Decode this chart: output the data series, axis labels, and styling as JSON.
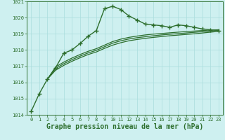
{
  "title": "Graphe pression niveau de la mer (hPa)",
  "background_color": "#cef0f0",
  "grid_color": "#aadddd",
  "line_color": "#2d6e2d",
  "xlim": [
    -0.5,
    23.5
  ],
  "ylim": [
    1014,
    1021
  ],
  "yticks": [
    1014,
    1015,
    1016,
    1017,
    1018,
    1019,
    1020,
    1021
  ],
  "xticks": [
    0,
    1,
    2,
    3,
    4,
    5,
    6,
    7,
    8,
    9,
    10,
    11,
    12,
    13,
    14,
    15,
    16,
    17,
    18,
    19,
    20,
    21,
    22,
    23
  ],
  "series": [
    {
      "x": [
        0,
        1,
        2,
        3,
        4,
        5,
        6,
        7,
        8,
        9,
        10,
        11,
        12,
        13,
        14,
        15,
        16,
        17,
        18,
        19,
        20,
        21,
        22,
        23
      ],
      "y": [
        1014.2,
        1015.3,
        1016.2,
        1016.9,
        1017.8,
        1018.0,
        1018.4,
        1018.85,
        1019.2,
        1020.55,
        1020.7,
        1020.5,
        1020.1,
        1019.85,
        1019.6,
        1019.55,
        1019.5,
        1019.4,
        1019.55,
        1019.5,
        1019.4,
        1019.3,
        1019.25,
        1019.2
      ],
      "marker": "+",
      "markersize": 4,
      "linestyle": "-",
      "linewidth": 1.0
    },
    {
      "x": [
        2,
        3,
        4,
        5,
        6,
        7,
        8,
        9,
        10,
        11,
        12,
        13,
        14,
        15,
        16,
        17,
        18,
        19,
        20,
        21,
        22,
        23
      ],
      "y": [
        1016.2,
        1016.75,
        1017.05,
        1017.3,
        1017.52,
        1017.72,
        1017.88,
        1018.1,
        1018.3,
        1018.45,
        1018.57,
        1018.65,
        1018.72,
        1018.78,
        1018.83,
        1018.88,
        1018.92,
        1018.96,
        1019.0,
        1019.05,
        1019.1,
        1019.15
      ],
      "marker": null,
      "markersize": 0,
      "linestyle": "-",
      "linewidth": 0.9
    },
    {
      "x": [
        2,
        3,
        4,
        5,
        6,
        7,
        8,
        9,
        10,
        11,
        12,
        13,
        14,
        15,
        16,
        17,
        18,
        19,
        20,
        21,
        22,
        23
      ],
      "y": [
        1016.2,
        1016.85,
        1017.15,
        1017.4,
        1017.62,
        1017.82,
        1017.98,
        1018.2,
        1018.42,
        1018.57,
        1018.68,
        1018.76,
        1018.82,
        1018.88,
        1018.93,
        1018.97,
        1019.01,
        1019.05,
        1019.09,
        1019.13,
        1019.17,
        1019.2
      ],
      "marker": null,
      "markersize": 0,
      "linestyle": "-",
      "linewidth": 0.9
    },
    {
      "x": [
        2,
        3,
        4,
        5,
        6,
        7,
        8,
        9,
        10,
        11,
        12,
        13,
        14,
        15,
        16,
        17,
        18,
        19,
        20,
        21,
        22,
        23
      ],
      "y": [
        1016.2,
        1016.95,
        1017.25,
        1017.5,
        1017.72,
        1017.92,
        1018.08,
        1018.3,
        1018.52,
        1018.67,
        1018.78,
        1018.86,
        1018.93,
        1018.98,
        1019.02,
        1019.06,
        1019.1,
        1019.14,
        1019.17,
        1019.2,
        1019.23,
        1019.25
      ],
      "marker": null,
      "markersize": 0,
      "linestyle": "-",
      "linewidth": 0.9
    }
  ],
  "title_fontsize": 7,
  "tick_fontsize": 5,
  "title_color": "#2d6e2d",
  "tick_color": "#2d6e2d",
  "axis_color": "#2d6e2d"
}
